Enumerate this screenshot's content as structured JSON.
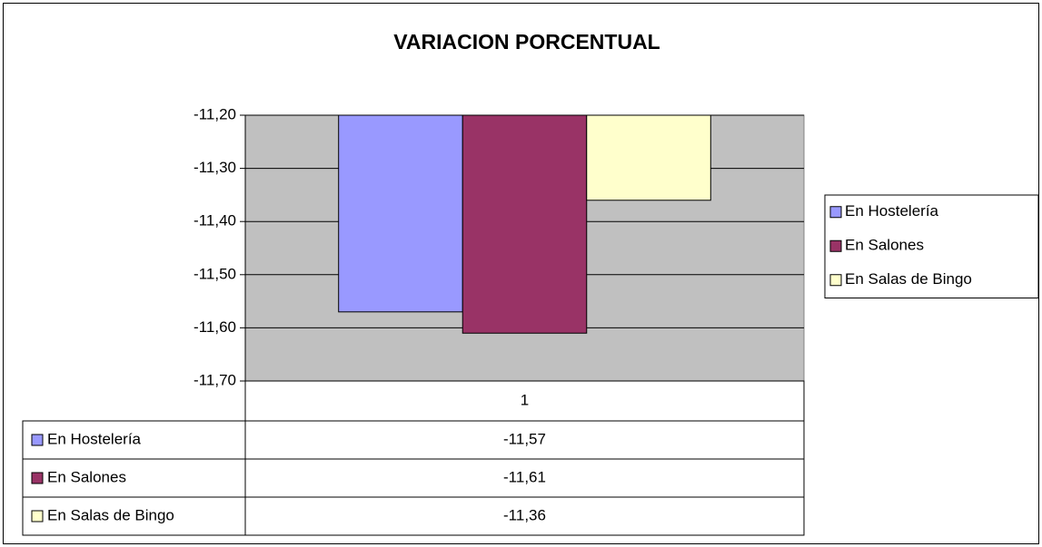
{
  "chart_data": {
    "type": "bar",
    "title": "VARIACION PORCENTUAL",
    "categories": [
      "1"
    ],
    "series": [
      {
        "name": "En Hostelería",
        "color": "#9999ff",
        "values": [
          -11.57
        ],
        "value_labels": [
          "-11,57"
        ]
      },
      {
        "name": "En Salones",
        "color": "#993366",
        "values": [
          -11.61
        ],
        "value_labels": [
          "-11,61"
        ]
      },
      {
        "name": "En Salas de Bingo",
        "color": "#ffffcc",
        "values": [
          -11.36
        ],
        "value_labels": [
          "-11,36"
        ]
      }
    ],
    "ylim": [
      -11.7,
      -11.2
    ],
    "yticks": [
      {
        "value": -11.7,
        "label": "-11,70"
      },
      {
        "value": -11.6,
        "label": "-11,60"
      },
      {
        "value": -11.5,
        "label": "-11,50"
      },
      {
        "value": -11.4,
        "label": "-11,40"
      },
      {
        "value": -11.3,
        "label": "-11,30"
      },
      {
        "value": -11.2,
        "label": "-11,20"
      }
    ],
    "grid": true,
    "legend": "right",
    "data_table": true
  }
}
